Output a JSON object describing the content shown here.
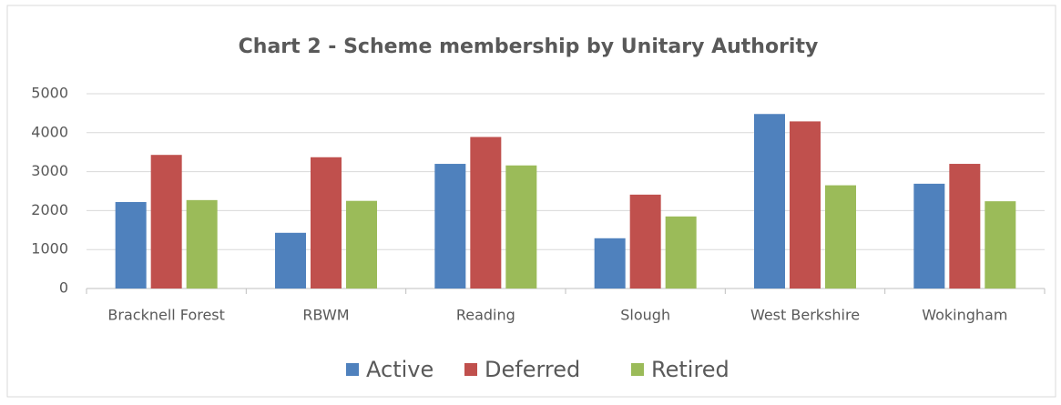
{
  "chart_data": {
    "type": "bar",
    "title": "Chart 2 - Scheme membership by Unitary Authority",
    "categories": [
      "Bracknell Forest",
      "RBWM",
      "Reading",
      "Slough",
      "West Berkshire",
      "Wokingham"
    ],
    "series": [
      {
        "name": "Active",
        "color": "#4f81bd",
        "values": [
          2220,
          1430,
          3200,
          1290,
          4480,
          2690
        ]
      },
      {
        "name": "Deferred",
        "color": "#c0504d",
        "values": [
          3430,
          3370,
          3890,
          2410,
          4290,
          3200
        ]
      },
      {
        "name": "Retired",
        "color": "#9bbb59",
        "values": [
          2270,
          2250,
          3160,
          1850,
          2650,
          2240
        ]
      }
    ],
    "ylim": [
      0,
      5000
    ],
    "yticks": [
      0,
      1000,
      2000,
      3000,
      4000,
      5000
    ],
    "grid": true,
    "legend": "bottom"
  }
}
